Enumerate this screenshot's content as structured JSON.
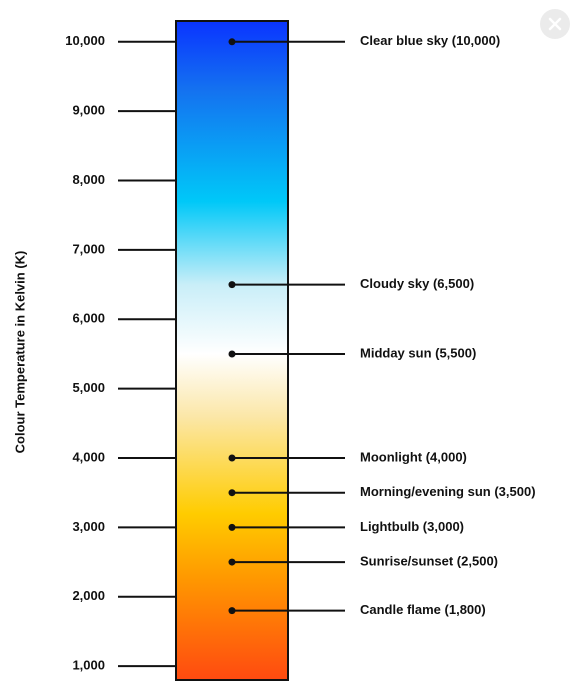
{
  "chart_data": {
    "type": "bar",
    "ylabel": "Colour Temperature in Kelvin (K)",
    "ylim": [
      800,
      10300
    ],
    "ticks": [
      {
        "value": 1000,
        "label": "1,000"
      },
      {
        "value": 2000,
        "label": "2,000"
      },
      {
        "value": 3000,
        "label": "3,000"
      },
      {
        "value": 4000,
        "label": "4,000"
      },
      {
        "value": 5000,
        "label": "5,000"
      },
      {
        "value": 6000,
        "label": "6,000"
      },
      {
        "value": 7000,
        "label": "7,000"
      },
      {
        "value": 8000,
        "label": "8,000"
      },
      {
        "value": 9000,
        "label": "9,000"
      },
      {
        "value": 10000,
        "label": "10,000"
      }
    ],
    "annotations": [
      {
        "label": "Clear blue sky (10,000)",
        "value": 10000
      },
      {
        "label": "Cloudy sky (6,500)",
        "value": 6500
      },
      {
        "label": "Midday sun (5,500)",
        "value": 5500
      },
      {
        "label": "Moonlight (4,000)",
        "value": 4000
      },
      {
        "label": "Morning/evening sun (3,500)",
        "value": 3500
      },
      {
        "label": "Lightbulb (3,000)",
        "value": 3000
      },
      {
        "label": "Sunrise/sunset (2,500)",
        "value": 2500
      },
      {
        "label": "Candle flame (1,800)",
        "value": 1800
      }
    ],
    "gradient_stops": [
      {
        "value": 800,
        "color": "#ff4a10"
      },
      {
        "value": 2300,
        "color": "#ff9a00"
      },
      {
        "value": 3200,
        "color": "#ffcc00"
      },
      {
        "value": 4600,
        "color": "#fbe7a8"
      },
      {
        "value": 5500,
        "color": "#ffffff"
      },
      {
        "value": 6500,
        "color": "#c9eef8"
      },
      {
        "value": 7700,
        "color": "#00c8f8"
      },
      {
        "value": 9300,
        "color": "#1472f0"
      },
      {
        "value": 10300,
        "color": "#0a34ff"
      }
    ],
    "grid": false
  },
  "ui": {
    "close_icon": "close-icon",
    "close_color": "#ebebeb"
  }
}
